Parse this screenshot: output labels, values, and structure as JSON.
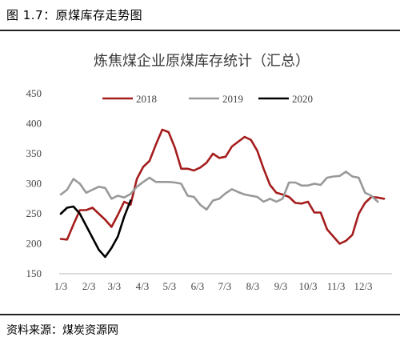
{
  "header": {
    "caption": "图 1.7：原煤库存走势图"
  },
  "footer": {
    "source": "资料来源：煤炭资源网"
  },
  "chart_data": {
    "type": "line",
    "title": "炼焦煤企业原煤库存统计（汇总）",
    "xlabel": "",
    "ylabel": "",
    "ylim": [
      150,
      450
    ],
    "yticks": [
      150,
      200,
      250,
      300,
      350,
      400,
      450
    ],
    "xlim": [
      0,
      52
    ],
    "xtick_labels": [
      "1/3",
      "2/3",
      "3/3",
      "4/3",
      "5/3",
      "6/3",
      "7/3",
      "8/3",
      "9/3",
      "10/3",
      "11/3",
      "12/3"
    ],
    "xtick_positions": [
      0,
      4.43,
      8.43,
      12.86,
      17.14,
      21.57,
      25.86,
      30.29,
      34.71,
      39,
      43.43,
      47.71
    ],
    "grid": false,
    "legend_position": "top-center",
    "series": [
      {
        "name": "2018",
        "color": "#a51d1d",
        "x": [
          0,
          1,
          2,
          3,
          4,
          5,
          6,
          7,
          8,
          9,
          10,
          11,
          12,
          13,
          14,
          15,
          16,
          17,
          18,
          19,
          20,
          21,
          22,
          23,
          24,
          25,
          26,
          27,
          28,
          29,
          30,
          31,
          32,
          33,
          34,
          35,
          36,
          37,
          38,
          39,
          40,
          41,
          42,
          43,
          44,
          45,
          46,
          47,
          48,
          49,
          50,
          51
        ],
        "values": [
          208,
          207,
          232,
          256,
          256,
          260,
          250,
          240,
          228,
          248,
          270,
          265,
          308,
          328,
          338,
          365,
          390,
          386,
          360,
          325,
          325,
          322,
          327,
          335,
          350,
          343,
          345,
          362,
          370,
          378,
          373,
          355,
          325,
          298,
          285,
          282,
          278,
          268,
          267,
          270,
          252,
          252,
          224,
          212,
          200,
          205,
          215,
          250,
          268,
          278,
          277,
          275
        ]
      },
      {
        "name": "2019",
        "color": "#999999",
        "x": [
          0,
          1,
          2,
          3,
          4,
          5,
          6,
          7,
          8,
          9,
          10,
          11,
          12,
          13,
          14,
          15,
          16,
          17,
          18,
          19,
          20,
          21,
          22,
          23,
          24,
          25,
          26,
          27,
          28,
          29,
          30,
          31,
          32,
          33,
          34,
          35,
          36,
          37,
          38,
          39,
          40,
          41,
          42,
          43,
          44,
          45,
          46,
          47,
          48,
          49,
          50
        ],
        "values": [
          282,
          290,
          308,
          300,
          285,
          290,
          295,
          293,
          275,
          280,
          277,
          283,
          295,
          303,
          310,
          303,
          303,
          303,
          302,
          300,
          280,
          278,
          265,
          257,
          272,
          275,
          284,
          291,
          286,
          282,
          280,
          278,
          270,
          275,
          270,
          275,
          302,
          302,
          297,
          297,
          300,
          298,
          310,
          312,
          313,
          320,
          312,
          310,
          285,
          280,
          270
        ]
      },
      {
        "name": "2020",
        "color": "#000000",
        "x": [
          0,
          1,
          2,
          3,
          4,
          5,
          6,
          7,
          8,
          9,
          10,
          11
        ],
        "values": [
          250,
          260,
          262,
          250,
          230,
          210,
          190,
          178,
          193,
          212,
          245,
          272
        ]
      }
    ]
  }
}
